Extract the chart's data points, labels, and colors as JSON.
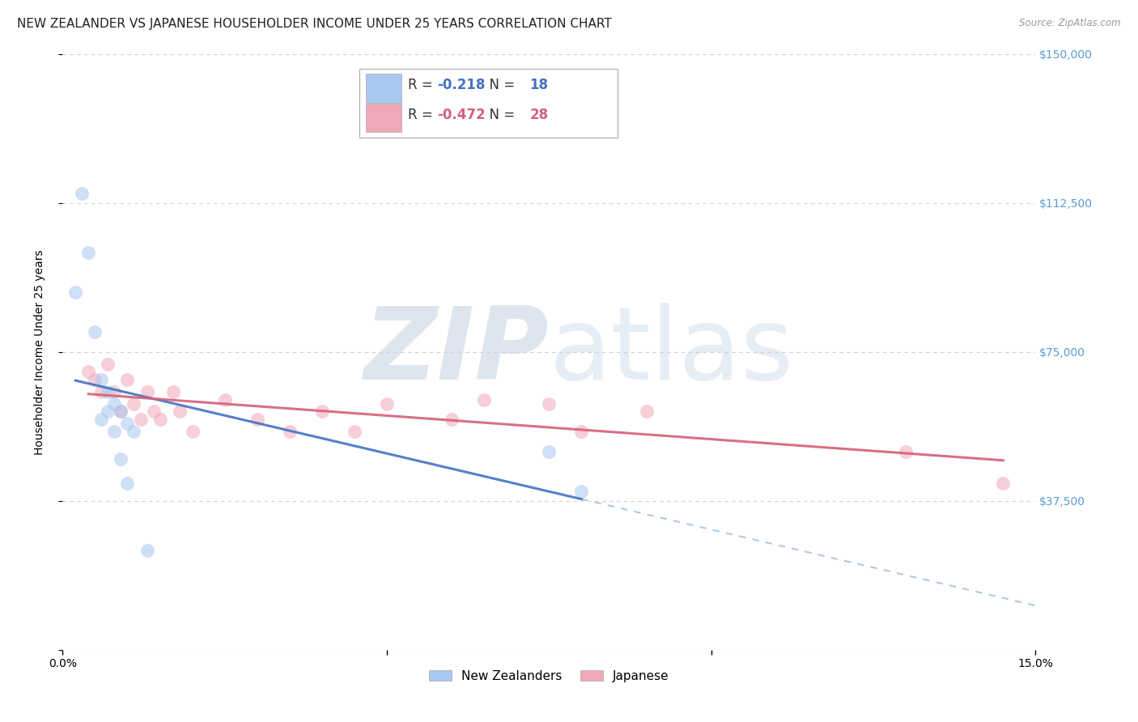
{
  "title": "NEW ZEALANDER VS JAPANESE HOUSEHOLDER INCOME UNDER 25 YEARS CORRELATION CHART",
  "source": "Source: ZipAtlas.com",
  "ylabel": "Householder Income Under 25 years",
  "xlim": [
    0,
    0.15
  ],
  "ylim": [
    0,
    150000
  ],
  "yticks": [
    0,
    37500,
    75000,
    112500,
    150000
  ],
  "ytick_labels": [
    "",
    "$37,500",
    "$75,000",
    "$112,500",
    "$150,000"
  ],
  "xticks": [
    0.0,
    0.05,
    0.1,
    0.15
  ],
  "xtick_labels": [
    "0.0%",
    "",
    "",
    "15.0%"
  ],
  "grid_color": "#d0d0d0",
  "nz_color": "#a8c8f0",
  "jp_color": "#f0a8b8",
  "nz_line_color": "#4472c4",
  "jp_line_color": "#d4607a",
  "nz_R": -0.218,
  "nz_N": 18,
  "jp_R": -0.472,
  "jp_N": 28,
  "legend_label_nz": "New Zealanders",
  "legend_label_jp": "Japanese",
  "nz_x": [
    0.002,
    0.003,
    0.004,
    0.005,
    0.006,
    0.006,
    0.007,
    0.007,
    0.008,
    0.008,
    0.009,
    0.009,
    0.01,
    0.01,
    0.011,
    0.013,
    0.075,
    0.08
  ],
  "nz_y": [
    90000,
    115000,
    100000,
    80000,
    68000,
    58000,
    65000,
    60000,
    62000,
    55000,
    60000,
    48000,
    57000,
    42000,
    55000,
    25000,
    50000,
    40000
  ],
  "jp_x": [
    0.004,
    0.005,
    0.006,
    0.007,
    0.008,
    0.009,
    0.01,
    0.011,
    0.012,
    0.013,
    0.014,
    0.015,
    0.017,
    0.018,
    0.02,
    0.025,
    0.03,
    0.035,
    0.04,
    0.045,
    0.05,
    0.06,
    0.065,
    0.075,
    0.08,
    0.09,
    0.13,
    0.145
  ],
  "jp_y": [
    70000,
    68000,
    65000,
    72000,
    65000,
    60000,
    68000,
    62000,
    58000,
    65000,
    60000,
    58000,
    65000,
    60000,
    55000,
    63000,
    58000,
    55000,
    60000,
    55000,
    62000,
    58000,
    63000,
    62000,
    55000,
    60000,
    50000,
    42000
  ],
  "background_color": "#ffffff",
  "title_fontsize": 11,
  "axis_label_fontsize": 10,
  "tick_fontsize": 10,
  "marker_size": 150,
  "marker_alpha": 0.55,
  "line_alpha": 0.9,
  "dashed_color": "#90b8e0"
}
